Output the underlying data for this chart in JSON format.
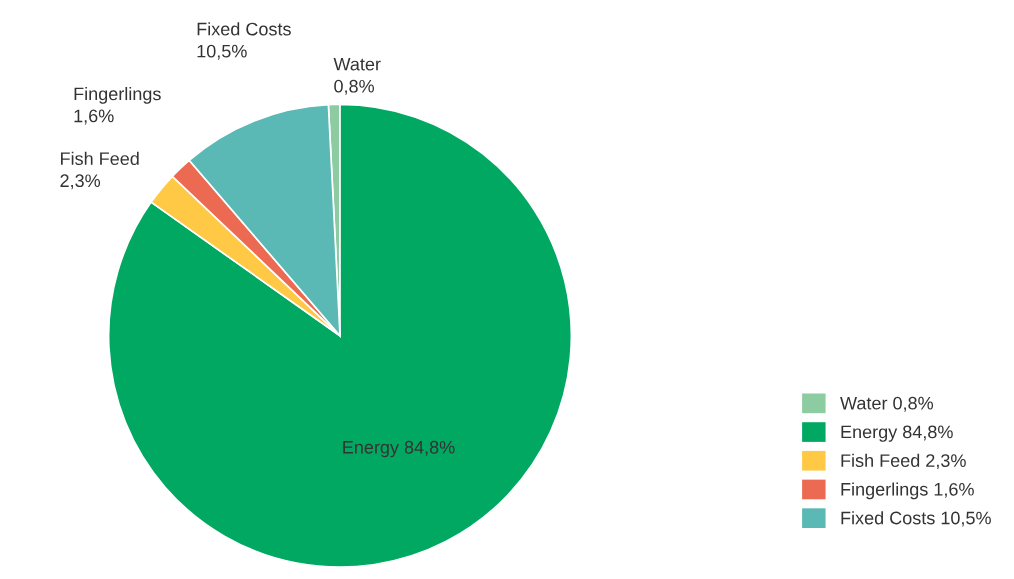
{
  "chart_data": {
    "type": "pie",
    "categories": [
      "Water",
      "Energy",
      "Fish Feed",
      "Fingerlings",
      "Fixed Costs"
    ],
    "values": [
      0.8,
      84.8,
      2.3,
      1.6,
      10.5
    ],
    "value_labels": [
      "0,8%",
      "84,8%",
      "2,3%",
      "1,6%",
      "10,5%"
    ],
    "colors": [
      "#8dcba0",
      "#00a862",
      "#ffc845",
      "#ed6a52",
      "#5ab8b5"
    ],
    "legend": "right"
  }
}
